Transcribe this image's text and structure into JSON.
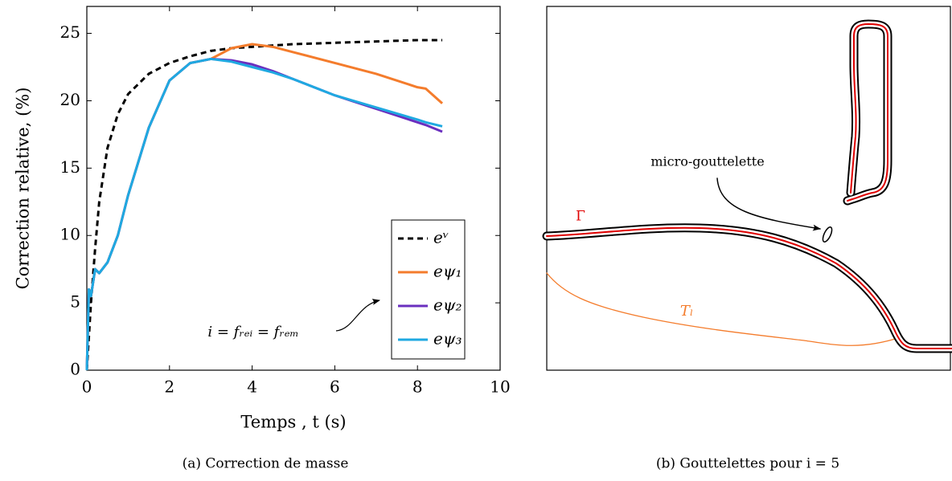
{
  "chart_data": {
    "type": "line",
    "caption": "(a) Correction de masse",
    "xlabel": "Temps , t (s)",
    "ylabel": "Correction relative,  (%)",
    "annotation": "i = fᵣₑᵢ = fᵣₑₘ",
    "x": [
      0,
      0.05,
      0.1,
      0.2,
      0.3,
      0.5,
      0.75,
      1,
      1.5,
      2,
      2.5,
      3,
      3.5,
      4,
      4.5,
      5,
      6,
      7,
      8,
      8.2,
      8.6
    ],
    "series": [
      {
        "name": "eᵛ",
        "color": "#000000",
        "line_style": "dashed",
        "values": [
          0,
          2.5,
          5,
          9,
          12.5,
          16.5,
          19,
          20.5,
          22,
          22.8,
          23.3,
          23.7,
          23.9,
          24,
          24.1,
          24.2,
          24.3,
          24.4,
          24.5,
          24.5,
          24.5
        ]
      },
      {
        "name": "eψ₁",
        "color": "#f47c2c",
        "line_style": "solid",
        "values": [
          0,
          6,
          5.5,
          7.5,
          7.2,
          8,
          10,
          13,
          18,
          21.5,
          22.8,
          23.1,
          23.9,
          24.2,
          24,
          23.6,
          22.8,
          22,
          21,
          20.9,
          19.8
        ]
      },
      {
        "name": "eψ₂",
        "color": "#6a2fbf",
        "line_style": "solid",
        "values": [
          0,
          6,
          5.5,
          7.5,
          7.2,
          8,
          10,
          13,
          18,
          21.5,
          22.8,
          23.1,
          23,
          22.7,
          22.2,
          21.6,
          20.4,
          19.4,
          18.4,
          18.2,
          17.7
        ]
      },
      {
        "name": "eψ₃",
        "color": "#1fa9e1",
        "line_style": "solid",
        "values": [
          0,
          6,
          5.5,
          7.5,
          7.2,
          8,
          10,
          13,
          18,
          21.5,
          22.8,
          23.1,
          22.9,
          22.5,
          22.1,
          21.6,
          20.4,
          19.5,
          18.6,
          18.4,
          18.1
        ]
      }
    ],
    "xlim": [
      0,
      10
    ],
    "xticks": [
      0,
      2,
      4,
      6,
      8,
      10
    ],
    "ylim": [
      0,
      27
    ],
    "yticks": [
      0,
      5,
      10,
      15,
      20,
      25
    ],
    "legend": "lower right"
  },
  "diagram": {
    "caption": "(b) Gouttelettes pour i = 5",
    "labels": {
      "droplet": "micro-gouttelette",
      "interface": "Γ",
      "liquidus": "Tₗ"
    }
  }
}
